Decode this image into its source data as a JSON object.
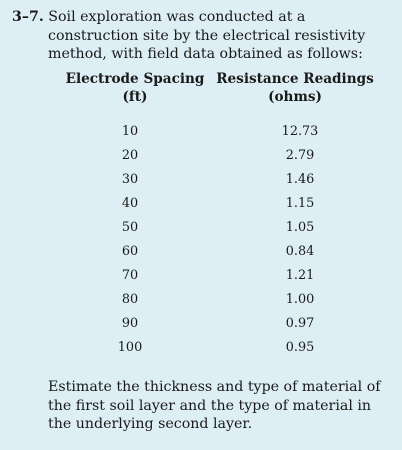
{
  "problem": {
    "number": "3–7.",
    "intro": "Soil exploration was conducted at a construction site by the electrical resistivity method, with field data obtained as follows:",
    "question": "Estimate the thickness and type of material of the first soil layer and the type of material in the underlying second layer."
  },
  "table": {
    "headers": {
      "spacing_title": "Electrode Spacing",
      "spacing_unit": "(ft)",
      "resistance_title": "Resistance Readings",
      "resistance_unit": "(ohms)"
    },
    "rows": [
      {
        "spacing": "10",
        "resistance": "12.73"
      },
      {
        "spacing": "20",
        "resistance": "2.79"
      },
      {
        "spacing": "30",
        "resistance": "1.46"
      },
      {
        "spacing": "40",
        "resistance": "1.15"
      },
      {
        "spacing": "50",
        "resistance": "1.05"
      },
      {
        "spacing": "60",
        "resistance": "0.84"
      },
      {
        "spacing": "70",
        "resistance": "1.21"
      },
      {
        "spacing": "80",
        "resistance": "1.00"
      },
      {
        "spacing": "90",
        "resistance": "0.97"
      },
      {
        "spacing": "100",
        "resistance": "0.95"
      }
    ]
  }
}
